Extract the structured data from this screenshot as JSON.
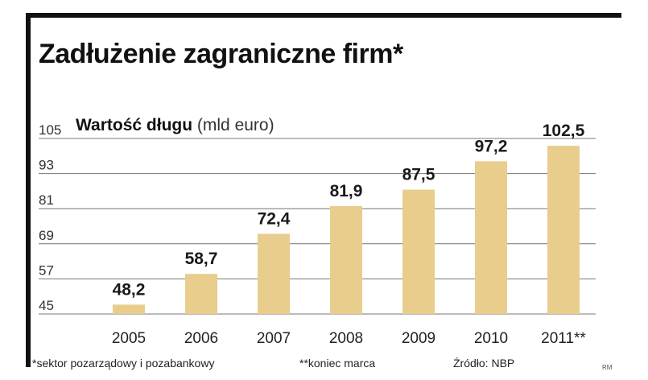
{
  "header": {
    "title": "Zadłużenie zagraniczne firm*",
    "subtitle_main": "Wartość długu",
    "subtitle_unit": "(mld euro)"
  },
  "footer": {
    "note_sector": "*sektor pozarządowy i pozabankowy",
    "note_march": "**koniec marca",
    "source": "Źródło: NBP",
    "credit": "RM"
  },
  "colors": {
    "bar": "#E8CD8C",
    "grid": "#777777",
    "text": "#1a1a1a"
  },
  "chart_data": {
    "type": "bar",
    "title": "Zadłużenie zagraniczne firm*",
    "subtitle": "Wartość długu (mld euro)",
    "categories": [
      "2005",
      "2006",
      "2007",
      "2008",
      "2009",
      "2010",
      "2011**"
    ],
    "values": [
      48.2,
      58.7,
      72.4,
      81.9,
      87.5,
      97.2,
      102.5
    ],
    "value_labels": [
      "48,2",
      "58,7",
      "72,4",
      "81,9",
      "87,5",
      "97,2",
      "102,5"
    ],
    "yticks": [
      45,
      57,
      69,
      81,
      93,
      105
    ],
    "ylim": [
      45,
      105
    ],
    "grid": true
  }
}
